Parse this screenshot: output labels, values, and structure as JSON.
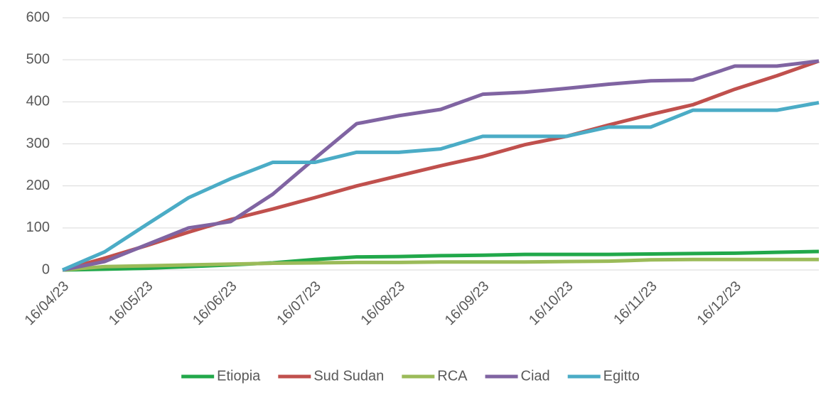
{
  "chart_data": {
    "type": "line",
    "categories": [
      "16/04/23",
      null,
      "16/05/23",
      null,
      "16/06/23",
      null,
      "16/07/23",
      null,
      "16/08/23",
      null,
      "16/09/23",
      null,
      "16/10/23",
      null,
      "16/11/23",
      null,
      "16/12/23",
      null,
      null
    ],
    "series": [
      {
        "name": "Etiopia",
        "color": "#21a84a",
        "values": [
          0,
          2,
          4,
          8,
          12,
          17,
          25,
          31,
          32,
          34,
          35,
          37,
          37,
          37,
          38,
          39,
          40,
          42,
          44
        ]
      },
      {
        "name": "Sud Sudan",
        "color": "#c0504d",
        "values": [
          0,
          28,
          58,
          90,
          120,
          145,
          172,
          200,
          224,
          248,
          270,
          298,
          318,
          345,
          370,
          393,
          430,
          462,
          497
        ]
      },
      {
        "name": "RCA",
        "color": "#9bbb59",
        "values": [
          0,
          8,
          10,
          12,
          14,
          16,
          17,
          18,
          18,
          19,
          19,
          19,
          20,
          21,
          24,
          25,
          25,
          25,
          25
        ]
      },
      {
        "name": "Ciad",
        "color": "#8064a2",
        "values": [
          0,
          20,
          60,
          100,
          115,
          180,
          265,
          348,
          367,
          382,
          418,
          423,
          432,
          442,
          450,
          452,
          485,
          485,
          497
        ]
      },
      {
        "name": "Egitto",
        "color": "#4bacc6",
        "values": [
          0,
          43,
          108,
          172,
          217,
          256,
          256,
          280,
          280,
          288,
          318,
          318,
          318,
          340,
          340,
          380,
          380,
          380,
          398
        ]
      }
    ],
    "ylim": [
      0,
      600
    ],
    "yticks": [
      0,
      100,
      200,
      300,
      400,
      500,
      600
    ],
    "grid": true,
    "legend": "bottom"
  }
}
